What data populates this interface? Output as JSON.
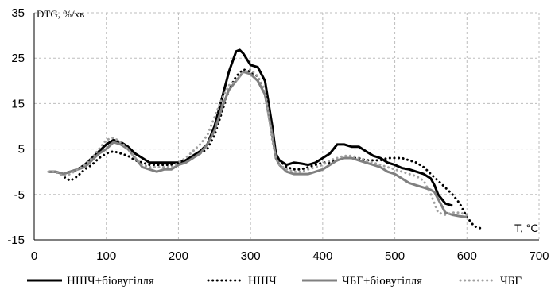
{
  "chart_data": {
    "type": "line",
    "title": "",
    "ylabel": "DTG, %/хв",
    "xlabel": "T, °C",
    "xlim": [
      0,
      700
    ],
    "ylim": [
      -15,
      35
    ],
    "x_ticks": [
      0,
      100,
      200,
      300,
      400,
      500,
      600,
      700
    ],
    "y_ticks": [
      -15,
      -5,
      5,
      15,
      25,
      35
    ],
    "grid": "dashed",
    "legend_placement": "bottom",
    "series": [
      {
        "name": "НШЧ+біовугілля",
        "style": "solid",
        "color": "#000000",
        "points": [
          [
            20,
            0
          ],
          [
            30,
            0
          ],
          [
            40,
            -0.5
          ],
          [
            50,
            0
          ],
          [
            60,
            0.5
          ],
          [
            70,
            1.5
          ],
          [
            80,
            3
          ],
          [
            90,
            4.5
          ],
          [
            100,
            6
          ],
          [
            110,
            7
          ],
          [
            120,
            6.5
          ],
          [
            130,
            5.5
          ],
          [
            140,
            4
          ],
          [
            150,
            3
          ],
          [
            160,
            2
          ],
          [
            170,
            2
          ],
          [
            180,
            2
          ],
          [
            190,
            2
          ],
          [
            200,
            2
          ],
          [
            210,
            2.5
          ],
          [
            220,
            3.5
          ],
          [
            230,
            4.5
          ],
          [
            240,
            6
          ],
          [
            250,
            10
          ],
          [
            260,
            16
          ],
          [
            270,
            22
          ],
          [
            280,
            26.5
          ],
          [
            285,
            26.8
          ],
          [
            290,
            26
          ],
          [
            300,
            23.5
          ],
          [
            310,
            23
          ],
          [
            320,
            20
          ],
          [
            330,
            10
          ],
          [
            335,
            4
          ],
          [
            340,
            2.5
          ],
          [
            350,
            1.5
          ],
          [
            360,
            2
          ],
          [
            370,
            1.8
          ],
          [
            380,
            1.5
          ],
          [
            390,
            2
          ],
          [
            400,
            3
          ],
          [
            410,
            4
          ],
          [
            420,
            6
          ],
          [
            430,
            6
          ],
          [
            440,
            5.5
          ],
          [
            450,
            5.5
          ],
          [
            460,
            4.5
          ],
          [
            470,
            3.5
          ],
          [
            480,
            3
          ],
          [
            490,
            2
          ],
          [
            500,
            1.5
          ],
          [
            510,
            0.8
          ],
          [
            520,
            0.5
          ],
          [
            530,
            0
          ],
          [
            540,
            -0.5
          ],
          [
            550,
            -1.5
          ],
          [
            555,
            -3
          ],
          [
            560,
            -5
          ],
          [
            570,
            -7
          ],
          [
            580,
            -7.5
          ]
        ]
      },
      {
        "name": "НШЧ",
        "style": "dotted",
        "color": "#000000",
        "points": [
          [
            20,
            0
          ],
          [
            30,
            0
          ],
          [
            40,
            -1
          ],
          [
            50,
            -2
          ],
          [
            60,
            -1
          ],
          [
            70,
            0.5
          ],
          [
            80,
            1.5
          ],
          [
            90,
            3
          ],
          [
            100,
            4
          ],
          [
            110,
            4.5
          ],
          [
            120,
            4
          ],
          [
            130,
            3.5
          ],
          [
            140,
            2.5
          ],
          [
            150,
            2
          ],
          [
            160,
            1.5
          ],
          [
            170,
            1.5
          ],
          [
            180,
            1.5
          ],
          [
            190,
            1.5
          ],
          [
            200,
            2
          ],
          [
            210,
            2.5
          ],
          [
            220,
            3
          ],
          [
            230,
            4
          ],
          [
            240,
            5
          ],
          [
            250,
            8
          ],
          [
            260,
            13
          ],
          [
            270,
            18
          ],
          [
            280,
            21
          ],
          [
            290,
            22.5
          ],
          [
            300,
            22
          ],
          [
            310,
            21
          ],
          [
            320,
            17
          ],
          [
            330,
            9
          ],
          [
            335,
            4
          ],
          [
            340,
            2.5
          ],
          [
            350,
            1
          ],
          [
            360,
            0.5
          ],
          [
            370,
            0.5
          ],
          [
            380,
            1
          ],
          [
            390,
            1.5
          ],
          [
            400,
            2
          ],
          [
            410,
            2
          ],
          [
            420,
            2.5
          ],
          [
            430,
            3
          ],
          [
            440,
            3
          ],
          [
            450,
            3
          ],
          [
            460,
            2.5
          ],
          [
            470,
            2.5
          ],
          [
            480,
            2.5
          ],
          [
            490,
            3
          ],
          [
            500,
            3
          ],
          [
            510,
            3
          ],
          [
            520,
            2.5
          ],
          [
            530,
            2
          ],
          [
            540,
            1
          ],
          [
            550,
            -0.5
          ],
          [
            560,
            -2
          ],
          [
            570,
            -3.5
          ],
          [
            580,
            -5
          ],
          [
            590,
            -7
          ],
          [
            600,
            -10
          ],
          [
            610,
            -12
          ],
          [
            620,
            -12.5
          ]
        ]
      },
      {
        "name": "ЧБГ+біовугілля",
        "style": "solid",
        "color": "#808080",
        "points": [
          [
            20,
            0
          ],
          [
            30,
            0
          ],
          [
            40,
            -0.5
          ],
          [
            50,
            0
          ],
          [
            60,
            0.5
          ],
          [
            70,
            1
          ],
          [
            80,
            2.5
          ],
          [
            90,
            4
          ],
          [
            100,
            5
          ],
          [
            110,
            6.5
          ],
          [
            120,
            6
          ],
          [
            130,
            5
          ],
          [
            140,
            3
          ],
          [
            150,
            1
          ],
          [
            160,
            0.5
          ],
          [
            170,
            0
          ],
          [
            180,
            0.5
          ],
          [
            190,
            0.5
          ],
          [
            200,
            1.5
          ],
          [
            210,
            2
          ],
          [
            220,
            3
          ],
          [
            230,
            4
          ],
          [
            240,
            6
          ],
          [
            250,
            9
          ],
          [
            260,
            14
          ],
          [
            270,
            18
          ],
          [
            280,
            20
          ],
          [
            290,
            22
          ],
          [
            300,
            21.5
          ],
          [
            310,
            20
          ],
          [
            320,
            17
          ],
          [
            330,
            8
          ],
          [
            335,
            3
          ],
          [
            340,
            1.5
          ],
          [
            350,
            0
          ],
          [
            360,
            -0.5
          ],
          [
            370,
            -0.5
          ],
          [
            380,
            -0.5
          ],
          [
            390,
            0
          ],
          [
            400,
            0.5
          ],
          [
            410,
            1.5
          ],
          [
            420,
            2.5
          ],
          [
            430,
            3
          ],
          [
            440,
            3
          ],
          [
            450,
            2.5
          ],
          [
            460,
            2
          ],
          [
            470,
            1.5
          ],
          [
            480,
            1
          ],
          [
            490,
            0
          ],
          [
            500,
            -0.5
          ],
          [
            510,
            -1.5
          ],
          [
            520,
            -2.5
          ],
          [
            530,
            -3
          ],
          [
            540,
            -3.5
          ],
          [
            550,
            -4
          ],
          [
            555,
            -4.5
          ],
          [
            560,
            -6
          ],
          [
            570,
            -9
          ],
          [
            580,
            -9.5
          ],
          [
            590,
            -9.8
          ],
          [
            600,
            -10
          ]
        ]
      },
      {
        "name": "ЧБГ",
        "style": "dotted",
        "color": "#a0a0a0",
        "points": [
          [
            20,
            0
          ],
          [
            30,
            0
          ],
          [
            40,
            -1
          ],
          [
            50,
            -0.5
          ],
          [
            60,
            0.5
          ],
          [
            70,
            1.5
          ],
          [
            80,
            3
          ],
          [
            90,
            5
          ],
          [
            100,
            7
          ],
          [
            110,
            7.5
          ],
          [
            120,
            6.5
          ],
          [
            130,
            5
          ],
          [
            140,
            3
          ],
          [
            150,
            1.5
          ],
          [
            160,
            1
          ],
          [
            170,
            1
          ],
          [
            180,
            1
          ],
          [
            190,
            1
          ],
          [
            200,
            2
          ],
          [
            210,
            3
          ],
          [
            220,
            4.5
          ],
          [
            230,
            6
          ],
          [
            240,
            8
          ],
          [
            250,
            12
          ],
          [
            260,
            16
          ],
          [
            270,
            19
          ],
          [
            280,
            20
          ],
          [
            290,
            22
          ],
          [
            300,
            22.5
          ],
          [
            310,
            21
          ],
          [
            320,
            18
          ],
          [
            330,
            7
          ],
          [
            335,
            3
          ],
          [
            340,
            1.5
          ],
          [
            350,
            0.5
          ],
          [
            360,
            0
          ],
          [
            370,
            0
          ],
          [
            380,
            0.5
          ],
          [
            390,
            1
          ],
          [
            400,
            1.5
          ],
          [
            410,
            2.5
          ],
          [
            420,
            3
          ],
          [
            430,
            3.5
          ],
          [
            440,
            3.5
          ],
          [
            450,
            3
          ],
          [
            460,
            2.5
          ],
          [
            470,
            2
          ],
          [
            480,
            1.5
          ],
          [
            490,
            1
          ],
          [
            500,
            0.5
          ],
          [
            510,
            0
          ],
          [
            520,
            -0.5
          ],
          [
            530,
            -1
          ],
          [
            540,
            -2
          ],
          [
            550,
            -5
          ],
          [
            555,
            -7
          ],
          [
            560,
            -9
          ],
          [
            570,
            -9.5
          ],
          [
            580,
            -9
          ],
          [
            590,
            -9
          ],
          [
            600,
            -9.5
          ]
        ]
      }
    ]
  }
}
